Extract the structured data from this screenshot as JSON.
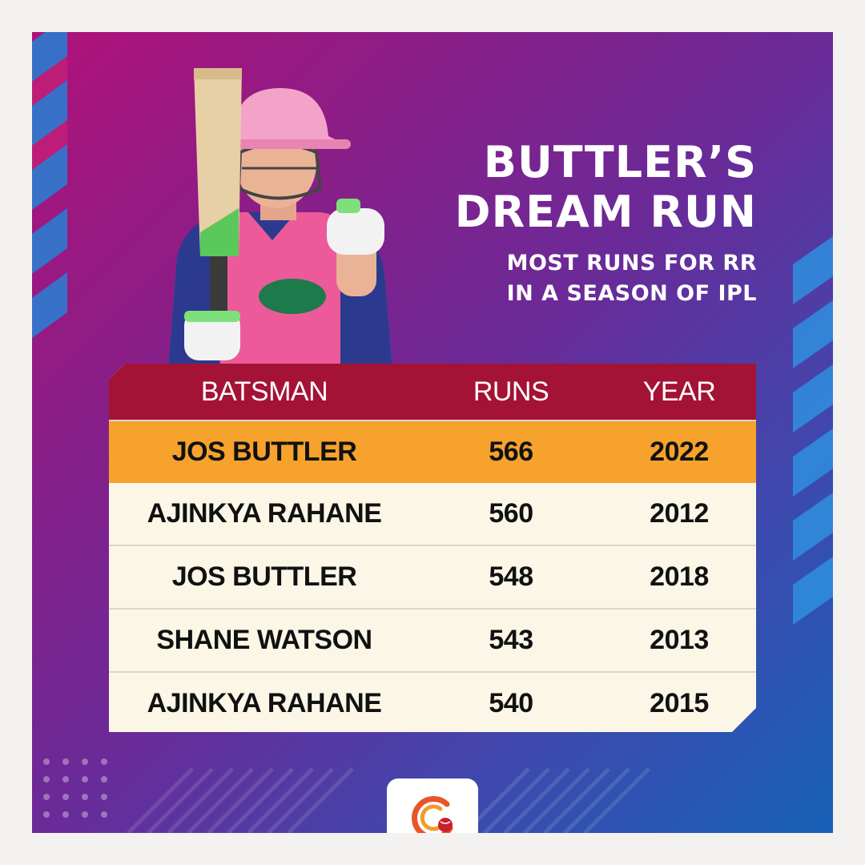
{
  "title": {
    "line1": "BUTTLER’S",
    "line2": "DREAM RUN",
    "subtitle1": "MOST RUNS FOR RR",
    "subtitle2": "IN A SEASON OF IPL"
  },
  "table": {
    "headers": {
      "batsman": "BATSMAN",
      "runs": "RUNS",
      "year": "YEAR"
    },
    "rows": [
      {
        "batsman": "JOS BUTTLER",
        "runs": "566",
        "year": "2022"
      },
      {
        "batsman": "AJINKYA RAHANE",
        "runs": "560",
        "year": "2012"
      },
      {
        "batsman": "JOS BUTTLER",
        "runs": "548",
        "year": "2018"
      },
      {
        "batsman": "SHANE WATSON",
        "runs": "543",
        "year": "2013"
      },
      {
        "batsman": "AJINKYA RAHANE",
        "runs": "540",
        "year": "2015"
      }
    ]
  },
  "colors": {
    "header_row": "#a41236",
    "highlight_row": "#f7a22c",
    "row_bg": "#fbf6e6",
    "jersey_pink": "#ec5a9a",
    "helmet_pink": "#f4a3c8"
  },
  "icons": {
    "player": "batsman-raising-bat-photo",
    "logo": "cricket-ball-logo-icon"
  }
}
